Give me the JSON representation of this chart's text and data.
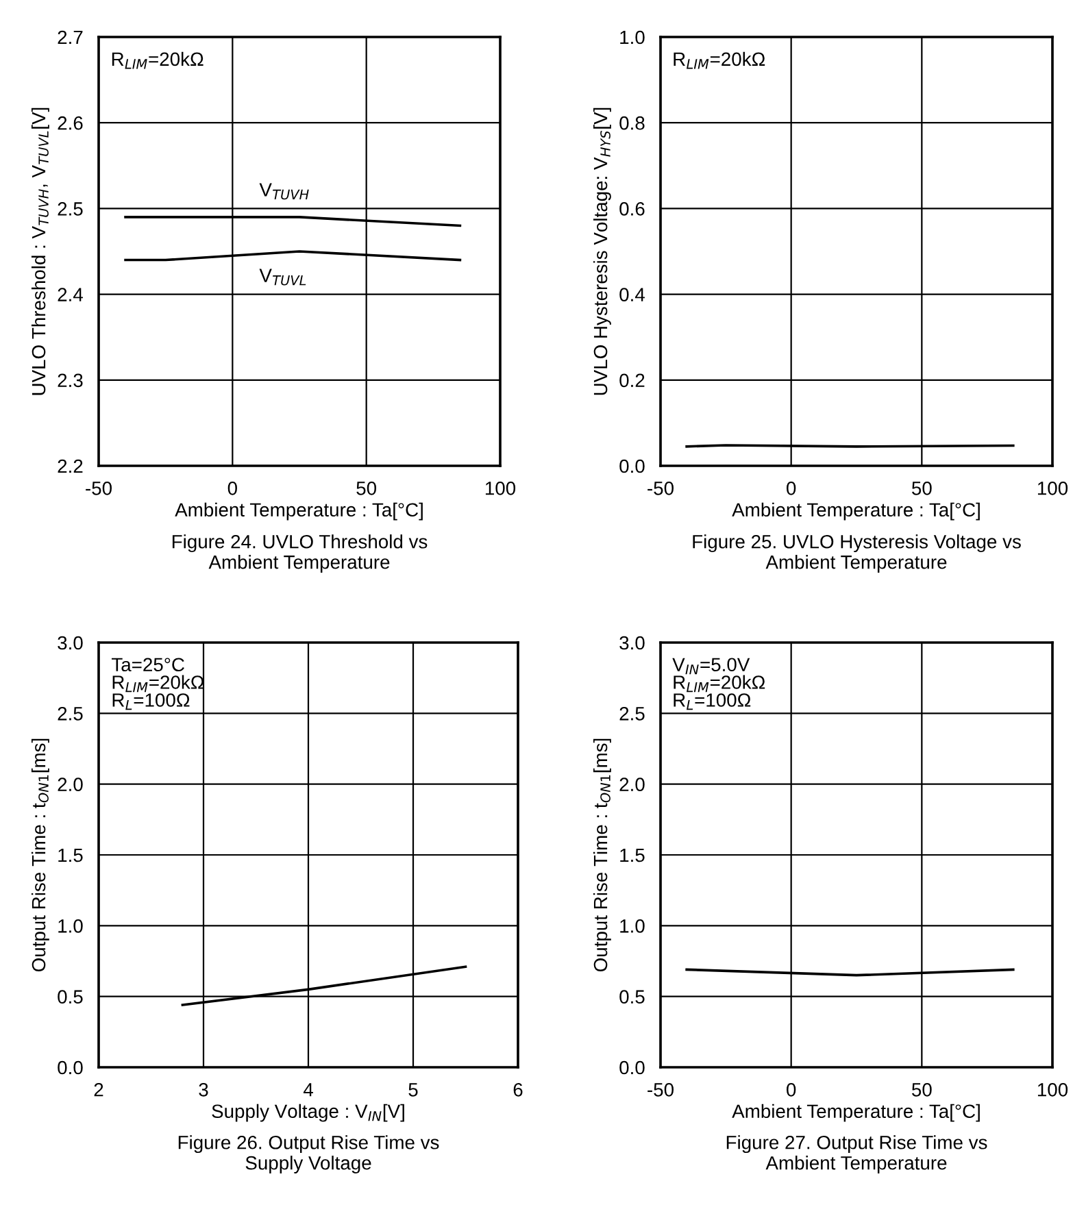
{
  "chart_data": [
    {
      "type": "line",
      "xlabel": "Ambient Temperature : Ta[°C]",
      "ylabel": "UVLO Threshold : V$_{TUVH}$, V$_{TUVL}$[V]",
      "x": [
        -40,
        -25,
        25,
        85
      ],
      "xlim": [
        -50,
        100
      ],
      "xticks": [
        -50,
        0,
        50,
        100
      ],
      "ylim": [
        2.2,
        2.7
      ],
      "yticks": [
        {
          "value": 2.2,
          "label": "2.2"
        },
        {
          "value": 2.3,
          "label": "2.3"
        },
        {
          "value": 2.4,
          "label": "2.4"
        },
        {
          "value": 2.5,
          "label": "2.5"
        },
        {
          "value": 2.6,
          "label": "2.6"
        },
        {
          "value": 2.7,
          "label": "2.7"
        }
      ],
      "grid": true,
      "legend": false,
      "series": [
        {
          "name": "V$_{TUVH}$",
          "color": "#000000",
          "values": [
            2.49,
            2.49,
            2.49,
            2.48
          ]
        },
        {
          "name": "V$_{TUVL}$",
          "color": "#000000",
          "values": [
            2.44,
            2.44,
            2.45,
            2.44
          ]
        }
      ],
      "annotations": [
        "R$_{LIM}$=20kΩ",
        "Figure 24. UVLO Threshold vs\nAmbient Temperature"
      ]
    },
    {
      "type": "line",
      "xlabel": "Ambient Temperature : Ta[°C]",
      "ylabel": "UVLO Hysteresis Voltage: V$_{HYS}$[V]",
      "x": [
        -40,
        -25,
        25,
        85
      ],
      "xlim": [
        -50,
        100
      ],
      "xticks": [
        -50,
        0,
        50,
        100
      ],
      "ylim": [
        0.0,
        1.0
      ],
      "yticks": [
        {
          "value": 0.0,
          "label": "0.0"
        },
        {
          "value": 0.2,
          "label": "0.2"
        },
        {
          "value": 0.4,
          "label": "0.4"
        },
        {
          "value": 0.6,
          "label": "0.6"
        },
        {
          "value": 0.8,
          "label": "0.8"
        },
        {
          "value": 1.0,
          "label": "1.0"
        }
      ],
      "grid": true,
      "legend": false,
      "series": [
        {
          "color": "#000000",
          "values": [
            0.045,
            0.048,
            0.045,
            0.047
          ]
        }
      ],
      "annotations": [
        "R$_{LIM}$=20kΩ",
        "Figure 25. UVLO Hysteresis Voltage vs\nAmbient Temperature"
      ]
    },
    {
      "type": "line",
      "xlabel": "Supply Voltage : V$_{IN}$[V]",
      "ylabel": "Output Rise Time : t$_{ON1}$[ms]",
      "x": [
        2.8,
        4.0,
        5.5
      ],
      "xlim": [
        2,
        6
      ],
      "xticks": [
        2,
        3,
        4,
        5,
        6
      ],
      "ylim": [
        0.0,
        3.0
      ],
      "yticks": [
        {
          "value": 0.0,
          "label": "0.0"
        },
        {
          "value": 0.5,
          "label": "0.5"
        },
        {
          "value": 1.0,
          "label": "1.0"
        },
        {
          "value": 1.5,
          "label": "1.5"
        },
        {
          "value": 2.0,
          "label": "2.0"
        },
        {
          "value": 2.5,
          "label": "2.5"
        },
        {
          "value": 3.0,
          "label": "3.0"
        }
      ],
      "grid": true,
      "legend": false,
      "series": [
        {
          "color": "#000000",
          "values": [
            0.44,
            0.55,
            0.71
          ]
        }
      ],
      "annotations": [
        "Ta=25°C\nR$_{LIM}$=20kΩ\nR$_{L}$=100Ω",
        "Figure 26. Output Rise Time vs\nSupply Voltage"
      ]
    },
    {
      "type": "line",
      "xlabel": "Ambient Temperature : Ta[°C]",
      "ylabel": "Output Rise Time : t$_{ON1}$[ms]",
      "x": [
        -40,
        25,
        85
      ],
      "xlim": [
        -50,
        100
      ],
      "xticks": [
        -50,
        0,
        50,
        100
      ],
      "ylim": [
        0.0,
        3.0
      ],
      "yticks": [
        {
          "value": 0.0,
          "label": "0.0"
        },
        {
          "value": 0.5,
          "label": "0.5"
        },
        {
          "value": 1.0,
          "label": "1.0"
        },
        {
          "value": 1.5,
          "label": "1.5"
        },
        {
          "value": 2.0,
          "label": "2.0"
        },
        {
          "value": 2.5,
          "label": "2.5"
        },
        {
          "value": 3.0,
          "label": "3.0"
        }
      ],
      "grid": true,
      "legend": false,
      "series": [
        {
          "color": "#000000",
          "values": [
            0.69,
            0.65,
            0.69
          ]
        }
      ],
      "annotations": [
        "V$_{IN}$=5.0V\nR$_{LIM}$=20kΩ\nR$_{L}$=100Ω",
        "Figure 27. Output Rise Time vs\nAmbient Temperature"
      ]
    }
  ]
}
